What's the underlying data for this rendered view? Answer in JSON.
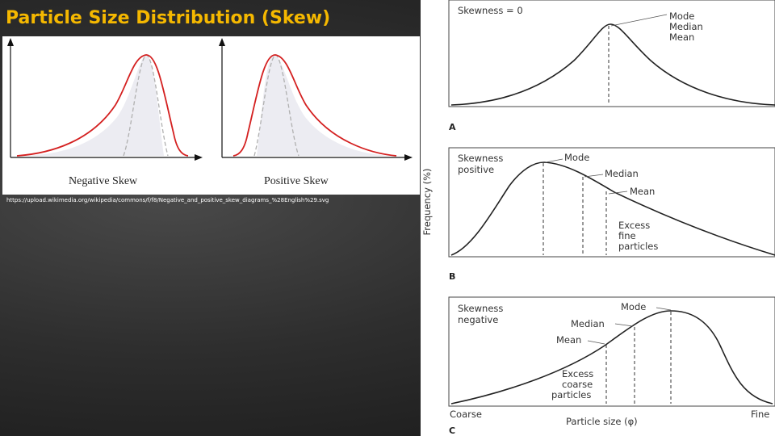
{
  "slide": {
    "title": "Particle Size Distribution (Skew)",
    "source_url": "https://upload.wikimedia.org/wikipedia/commons/f/f8/Negative_and_positive_skew_diagrams_%28English%29.svg"
  },
  "left_figure": {
    "negative_label": "Negative Skew",
    "positive_label": "Positive Skew",
    "curve_color": "#d42020",
    "normal_curve_color": "#b0b0b0"
  },
  "right_figure": {
    "y_axis_label": "Frequency (%)",
    "x_axis_label": "Particle size (φ)",
    "x_left": "Coarse",
    "x_right": "Fine",
    "panel_a": {
      "letter": "A",
      "skewness": "Skewness = 0",
      "mode": "Mode",
      "median": "Median",
      "mean": "Mean"
    },
    "panel_b": {
      "letter": "B",
      "skewness_line1": "Skewness",
      "skewness_line2": "positive",
      "mode": "Mode",
      "median": "Median",
      "mean": "Mean",
      "excess_line1": "Excess",
      "excess_line2": "fine",
      "excess_line3": "particles"
    },
    "panel_c": {
      "letter": "C",
      "skewness_line1": "Skewness",
      "skewness_line2": "negative",
      "mode": "Mode",
      "median": "Median",
      "mean": "Mean",
      "excess_line1": "Excess",
      "excess_line2": "coarse",
      "excess_line3": "particles"
    }
  }
}
